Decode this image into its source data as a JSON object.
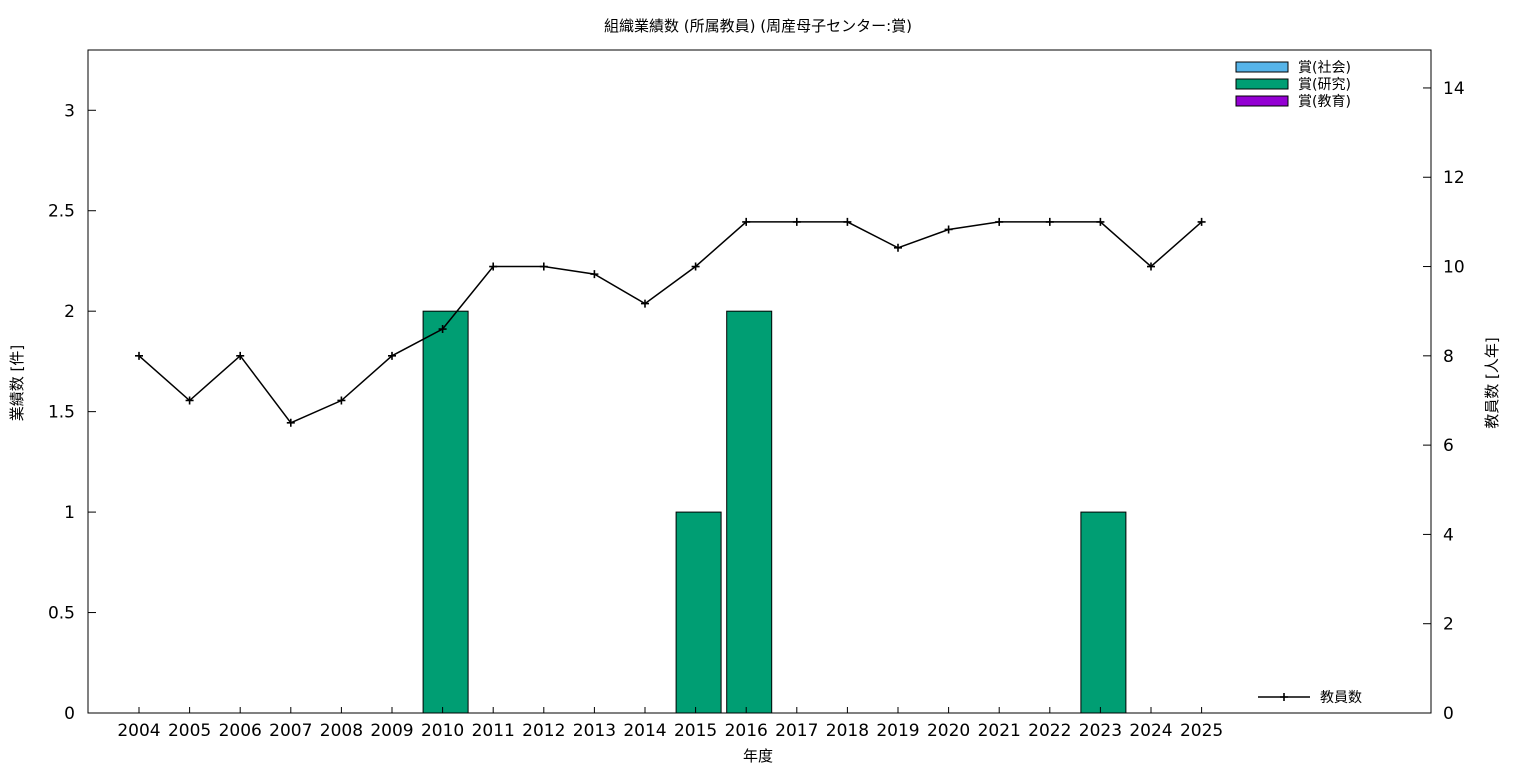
{
  "chart_data": {
    "type": "bar",
    "title": "組織業績数 (所属教員) (周産母子センター:賞)",
    "xlabel": "年度",
    "ylabel_left": "業績数 [件]",
    "ylabel_right": "教員数 [人年]",
    "categories": [
      "2004",
      "2005",
      "2006",
      "2007",
      "2008",
      "2009",
      "2010",
      "2011",
      "2012",
      "2013",
      "2014",
      "2015",
      "2016",
      "2017",
      "2018",
      "2019",
      "2020",
      "2021",
      "2022",
      "2023",
      "2024",
      "2025"
    ],
    "y_left_range": [
      0,
      3.3
    ],
    "y_left_ticks": [
      "0",
      "0.5",
      "1",
      "1.5",
      "2",
      "2.5",
      "3"
    ],
    "y_right_range": [
      0,
      14.85
    ],
    "y_right_ticks": [
      "0",
      "2",
      "4",
      "6",
      "8",
      "10",
      "12",
      "14"
    ],
    "legend_position": "top-right",
    "series": [
      {
        "name": "賞(社会)",
        "kind": "bar",
        "axis": "left",
        "color": "#56b4e9",
        "values": [
          0,
          0,
          0,
          0,
          0,
          0,
          0,
          0,
          0,
          0,
          0,
          0,
          0,
          0,
          0,
          0,
          0,
          0,
          0,
          0,
          0,
          0
        ]
      },
      {
        "name": "賞(研究)",
        "kind": "bar",
        "axis": "left",
        "color": "#009e73",
        "values": [
          0,
          0,
          0,
          0,
          0,
          0,
          2,
          0,
          0,
          0,
          0,
          1,
          2,
          0,
          0,
          0,
          0,
          0,
          0,
          1,
          0,
          0
        ]
      },
      {
        "name": "賞(教育)",
        "kind": "bar",
        "axis": "left",
        "color": "#9400d3",
        "values": [
          0,
          0,
          0,
          0,
          0,
          0,
          0,
          0,
          0,
          0,
          0,
          0,
          0,
          0,
          0,
          0,
          0,
          0,
          0,
          0,
          0,
          0
        ]
      },
      {
        "name": "教員数",
        "kind": "line",
        "axis": "right",
        "color": "#000000",
        "values": [
          8,
          7,
          8,
          6.5,
          7,
          8,
          8.6,
          10,
          10,
          9.83,
          9.17,
          10,
          11,
          11,
          11,
          10.42,
          10.83,
          11,
          11,
          11,
          10,
          11
        ],
        "legend_position": "bottom-right"
      }
    ]
  }
}
